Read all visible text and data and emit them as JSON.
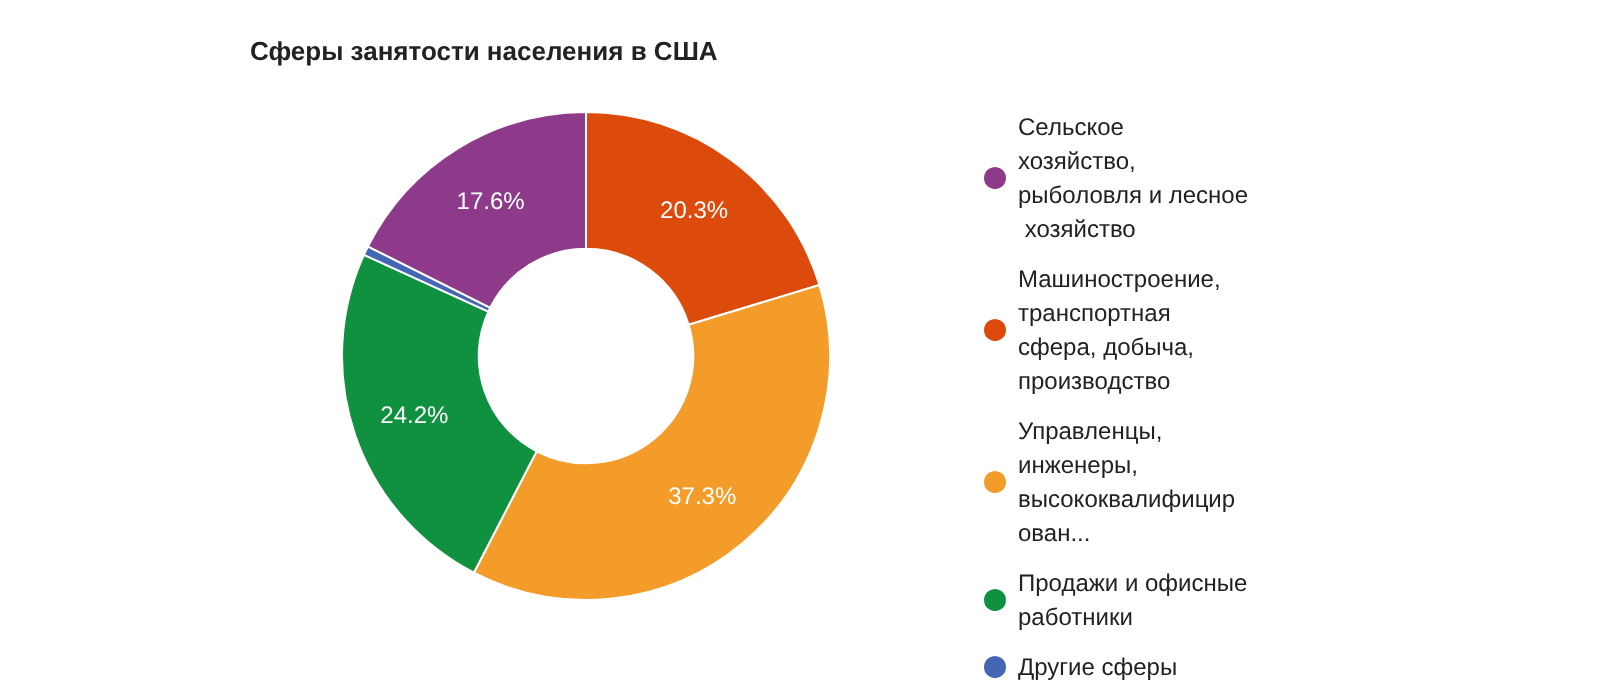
{
  "chart_data": {
    "type": "donut",
    "title": "Сферы занятости населения в США",
    "categories": [
      "Сельское хозяйство, рыболовля и лесное хозяйство",
      "Машиностроение, транспортная сфера, добыча, производство",
      "Управленцы, инженеры, высококвалифицирован...",
      "Продажи и офисные работники",
      "Другие сферы"
    ],
    "values": [
      17.6,
      20.3,
      37.3,
      24.2,
      0.6
    ],
    "colors": [
      "#8e3a8a",
      "#dc4b0c",
      "#f39c2a",
      "#0f9140",
      "#4466b4"
    ],
    "value_labels": [
      "17.6%",
      "20.3%",
      "37.3%",
      "24.2%",
      null
    ],
    "legend": "right"
  }
}
